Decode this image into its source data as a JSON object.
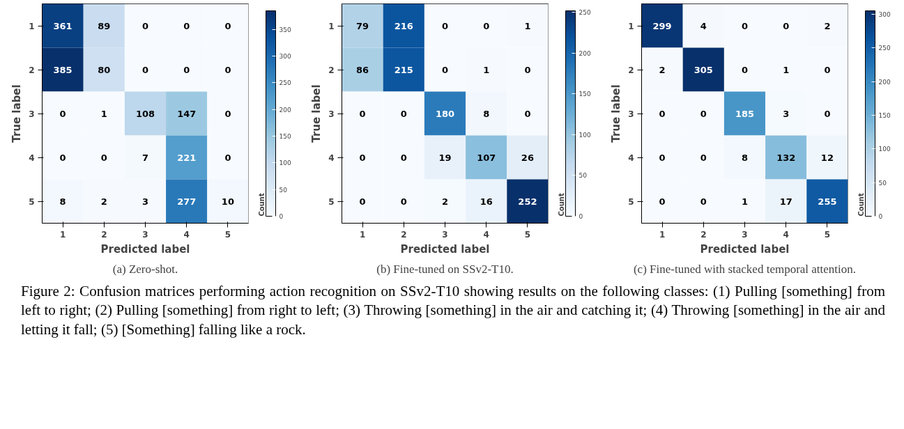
{
  "chart_data": [
    {
      "type": "heatmap",
      "xlabel": "Predicted label",
      "ylabel": "True label",
      "clabel": "Count",
      "categories": [
        "1",
        "2",
        "3",
        "4",
        "5"
      ],
      "y_categories": [
        "1",
        "2",
        "3",
        "4",
        "5"
      ],
      "cells": [
        [
          361,
          89,
          0,
          0,
          0
        ],
        [
          385,
          80,
          0,
          0,
          0
        ],
        [
          0,
          1,
          108,
          147,
          0
        ],
        [
          0,
          0,
          7,
          221,
          0
        ],
        [
          8,
          2,
          3,
          277,
          10
        ]
      ],
      "clim": [
        0,
        385
      ],
      "cticks": [
        0,
        50,
        100,
        150,
        200,
        250,
        300,
        350
      ],
      "data_labels": true,
      "annotations": [
        "(a) Zero-shot.",
        "Figure 2: Confusion matrices performing action recognition on SSv2-T10 showing results on the following classes: (1) Pulling [something] from left to right; (2) Pulling [something] from right to left; (3) Throwing [something] in the air and catching it; (4) Throwing [something] in the air and letting it fall; (5) [Something] falling like a rock."
      ]
    },
    {
      "type": "heatmap",
      "xlabel": "Predicted label",
      "ylabel": "True label",
      "clabel": "Count",
      "categories": [
        "1",
        "2",
        "3",
        "4",
        "5"
      ],
      "y_categories": [
        "1",
        "2",
        "3",
        "4",
        "5"
      ],
      "cells": [
        [
          79,
          216,
          0,
          0,
          1
        ],
        [
          86,
          215,
          0,
          1,
          0
        ],
        [
          0,
          0,
          180,
          8,
          0
        ],
        [
          0,
          0,
          19,
          107,
          26
        ],
        [
          0,
          0,
          2,
          16,
          252
        ]
      ],
      "clim": [
        0,
        252
      ],
      "cticks": [
        0,
        50,
        100,
        150,
        200,
        250
      ],
      "data_labels": true,
      "annotations": [
        "(b) Fine-tuned on SSv2-T10."
      ]
    },
    {
      "type": "heatmap",
      "xlabel": "Predicted label",
      "ylabel": "True label",
      "clabel": "Count",
      "categories": [
        "1",
        "2",
        "3",
        "4",
        "5"
      ],
      "y_categories": [
        "1",
        "2",
        "3",
        "4",
        "5"
      ],
      "cells": [
        [
          299,
          4,
          0,
          0,
          2
        ],
        [
          2,
          305,
          0,
          1,
          0
        ],
        [
          0,
          0,
          185,
          3,
          0
        ],
        [
          0,
          0,
          8,
          132,
          12
        ],
        [
          0,
          0,
          1,
          17,
          255
        ]
      ],
      "clim": [
        0,
        305
      ],
      "cticks": [
        0,
        50,
        100,
        150,
        200,
        250,
        300
      ],
      "data_labels": true,
      "annotations": [
        "(c) Fine-tuned with stacked temporal attention."
      ]
    }
  ]
}
